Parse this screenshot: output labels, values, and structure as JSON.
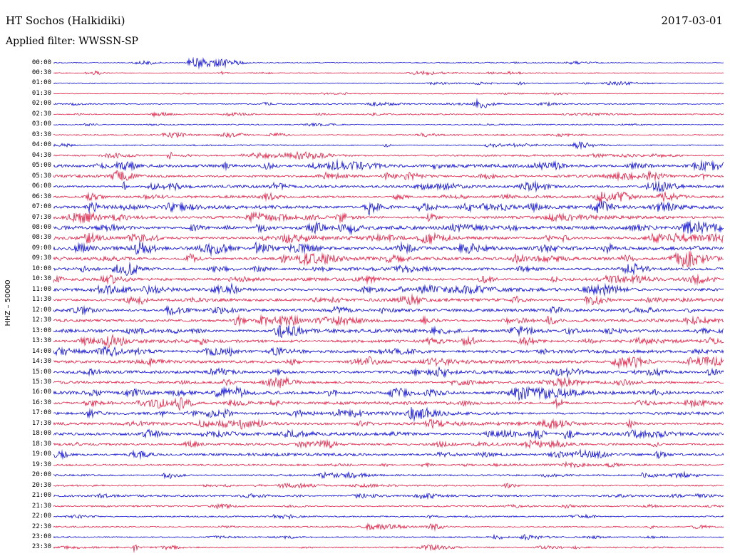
{
  "header": {
    "station": "HT Sochos (Halkidiki)",
    "date": "2017-03-01",
    "filter": "Applied filter: WWSSN-SP"
  },
  "axis": {
    "left_label": "HHZ – 50000"
  },
  "chart_data": {
    "type": "line",
    "title": "HT Sochos (Halkidiki)",
    "subtitle": "Applied filter: WWSSN-SP",
    "date": "2017-03-01",
    "channel": "HHZ",
    "scale": "50000",
    "minutes_per_row": 30,
    "legend": "none",
    "grid": false,
    "colors": {
      "even": "#0000cd",
      "odd": "#dc143c"
    },
    "rows": [
      {
        "label": "00:00",
        "noise": 0.9,
        "events": [
          {
            "pos": 0.205,
            "amp": 8.0,
            "w": 0.006
          },
          {
            "pos": 0.228,
            "amp": 5.0,
            "w": 0.018
          }
        ]
      },
      {
        "label": "00:30",
        "noise": 0.9,
        "events": [
          {
            "pos": 0.545,
            "amp": 2.0,
            "w": 0.02
          },
          {
            "pos": 0.062,
            "amp": 1.5,
            "w": 0.004
          }
        ]
      },
      {
        "label": "01:00",
        "noise": 0.8,
        "events": [
          {
            "pos": 0.835,
            "amp": 2.2,
            "w": 0.018
          }
        ]
      },
      {
        "label": "01:30",
        "noise": 0.8,
        "events": [
          {
            "pos": 0.74,
            "amp": 1.6,
            "w": 0.01
          }
        ]
      },
      {
        "label": "02:00",
        "noise": 1.0,
        "events": [
          {
            "pos": 0.634,
            "amp": 6.0,
            "w": 0.009
          },
          {
            "pos": 0.315,
            "amp": 1.8,
            "w": 0.006
          }
        ]
      },
      {
        "label": "02:30",
        "noise": 0.9,
        "events": [
          {
            "pos": 0.155,
            "amp": 1.8,
            "w": 0.01
          },
          {
            "pos": 0.78,
            "amp": 1.5,
            "w": 0.03
          }
        ]
      },
      {
        "label": "03:00",
        "noise": 0.9,
        "events": []
      },
      {
        "label": "03:30",
        "noise": 1.2,
        "events": [
          {
            "pos": 0.175,
            "amp": 2.2,
            "w": 0.012
          },
          {
            "pos": 0.255,
            "amp": 2.0,
            "w": 0.012
          }
        ]
      },
      {
        "label": "04:00",
        "noise": 1.1,
        "events": [
          {
            "pos": 0.65,
            "amp": 1.8,
            "w": 0.01
          }
        ]
      },
      {
        "label": "04:30",
        "noise": 1.4,
        "events": [
          {
            "pos": 0.172,
            "amp": 9.0,
            "w": 0.0025
          },
          {
            "pos": 0.33,
            "amp": 2.6,
            "w": 0.03
          },
          {
            "pos": 0.37,
            "amp": 2.4,
            "w": 0.02
          },
          {
            "pos": 0.9,
            "amp": 2.2,
            "w": 0.012
          }
        ]
      },
      {
        "label": "05:00",
        "noise": 2.4,
        "events": [
          {
            "pos": 0.39,
            "amp": 3.0,
            "w": 0.015
          },
          {
            "pos": 0.455,
            "amp": 3.5,
            "w": 0.015
          },
          {
            "pos": 0.865,
            "amp": 3.0,
            "w": 0.012
          },
          {
            "pos": 0.97,
            "amp": 5.0,
            "w": 0.03
          }
        ]
      },
      {
        "label": "05:30",
        "noise": 2.0,
        "events": [
          {
            "pos": 0.095,
            "amp": 6.0,
            "w": 0.01
          },
          {
            "pos": 0.405,
            "amp": 4.0,
            "w": 0.012
          },
          {
            "pos": 0.85,
            "amp": 2.5,
            "w": 0.015
          }
        ]
      },
      {
        "label": "06:00",
        "noise": 2.2,
        "events": [
          {
            "pos": 0.103,
            "amp": 7.0,
            "w": 0.002
          },
          {
            "pos": 0.55,
            "amp": 3.0,
            "w": 0.02
          }
        ]
      },
      {
        "label": "06:30",
        "noise": 2.0,
        "events": [
          {
            "pos": 0.815,
            "amp": 7.0,
            "w": 0.008
          },
          {
            "pos": 0.845,
            "amp": 5.5,
            "w": 0.008
          },
          {
            "pos": 0.91,
            "amp": 5.0,
            "w": 0.01
          }
        ]
      },
      {
        "label": "07:00",
        "noise": 2.7,
        "events": [
          {
            "pos": 0.17,
            "amp": 5.0,
            "w": 0.003
          },
          {
            "pos": 0.62,
            "amp": 4.0,
            "w": 0.018
          },
          {
            "pos": 0.1,
            "amp": 3.0,
            "w": 0.01
          }
        ]
      },
      {
        "label": "07:30",
        "noise": 2.4,
        "events": [
          {
            "pos": 0.3,
            "amp": 3.0,
            "w": 0.015
          },
          {
            "pos": 0.75,
            "amp": 3.0,
            "w": 0.02
          }
        ]
      },
      {
        "label": "08:00",
        "noise": 2.9,
        "events": [
          {
            "pos": 0.955,
            "amp": 6.0,
            "w": 0.025
          },
          {
            "pos": 0.6,
            "amp": 3.2,
            "w": 0.02
          }
        ]
      },
      {
        "label": "08:30",
        "noise": 2.7,
        "events": [
          {
            "pos": 0.05,
            "amp": 5.0,
            "w": 0.008
          },
          {
            "pos": 0.35,
            "amp": 5.0,
            "w": 0.015
          },
          {
            "pos": 0.93,
            "amp": 4.0,
            "w": 0.015
          }
        ]
      },
      {
        "label": "09:00",
        "noise": 2.8,
        "events": [
          {
            "pos": 0.36,
            "amp": 5.0,
            "w": 0.015
          },
          {
            "pos": 0.305,
            "amp": 4.0,
            "w": 0.01
          },
          {
            "pos": 0.73,
            "amp": 3.0,
            "w": 0.015
          }
        ]
      },
      {
        "label": "09:30",
        "noise": 2.7,
        "events": [
          {
            "pos": 0.38,
            "amp": 3.0,
            "w": 0.012
          },
          {
            "pos": 0.5,
            "amp": 3.0,
            "w": 0.012
          },
          {
            "pos": 0.95,
            "amp": 4.0,
            "w": 0.02
          }
        ]
      },
      {
        "label": "10:00",
        "noise": 2.4,
        "events": [
          {
            "pos": 0.1,
            "amp": 4.0,
            "w": 0.012
          },
          {
            "pos": 0.52,
            "amp": 3.0,
            "w": 0.015
          }
        ]
      },
      {
        "label": "10:30",
        "noise": 2.4,
        "events": [
          {
            "pos": 0.085,
            "amp": 4.0,
            "w": 0.01
          },
          {
            "pos": 0.27,
            "amp": 3.0,
            "w": 0.012
          },
          {
            "pos": 0.82,
            "amp": 3.0,
            "w": 0.015
          }
        ]
      },
      {
        "label": "11:00",
        "noise": 2.7,
        "events": [
          {
            "pos": 0.065,
            "amp": 4.0,
            "w": 0.01
          },
          {
            "pos": 0.24,
            "amp": 3.5,
            "w": 0.012
          },
          {
            "pos": 0.62,
            "amp": 3.0,
            "w": 0.015
          }
        ]
      },
      {
        "label": "11:30",
        "noise": 2.4,
        "events": [
          {
            "pos": 0.8,
            "amp": 6.5,
            "w": 0.01
          },
          {
            "pos": 0.52,
            "amp": 3.0,
            "w": 0.012
          }
        ]
      },
      {
        "label": "12:00",
        "noise": 2.4,
        "events": [
          {
            "pos": 0.035,
            "amp": 4.0,
            "w": 0.01
          },
          {
            "pos": 0.24,
            "amp": 4.0,
            "w": 0.012
          }
        ]
      },
      {
        "label": "12:30",
        "noise": 2.4,
        "events": [
          {
            "pos": 0.95,
            "amp": 3.5,
            "w": 0.015
          },
          {
            "pos": 0.4,
            "amp": 3.0,
            "w": 0.012
          }
        ]
      },
      {
        "label": "13:00",
        "noise": 2.7,
        "events": [
          {
            "pos": 0.69,
            "amp": 5.0,
            "w": 0.012
          },
          {
            "pos": 0.57,
            "amp": 3.0,
            "w": 0.012
          }
        ]
      },
      {
        "label": "13:30",
        "noise": 2.4,
        "events": [
          {
            "pos": 0.615,
            "amp": 6.0,
            "w": 0.007
          },
          {
            "pos": 0.56,
            "amp": 3.0,
            "w": 0.01
          }
        ]
      },
      {
        "label": "14:00",
        "noise": 2.4,
        "events": [
          {
            "pos": 0.5,
            "amp": 3.0,
            "w": 0.02
          }
        ]
      },
      {
        "label": "14:30",
        "noise": 2.4,
        "events": [
          {
            "pos": 0.845,
            "amp": 5.0,
            "w": 0.018
          },
          {
            "pos": 0.45,
            "amp": 3.0,
            "w": 0.012
          }
        ]
      },
      {
        "label": "15:00",
        "noise": 2.4,
        "events": [
          {
            "pos": 0.245,
            "amp": 4.0,
            "w": 0.01
          },
          {
            "pos": 0.05,
            "amp": 3.0,
            "w": 0.01
          }
        ]
      },
      {
        "label": "15:30",
        "noise": 2.1,
        "events": [
          {
            "pos": 0.6,
            "amp": 2.8,
            "w": 0.015
          }
        ]
      },
      {
        "label": "16:00",
        "noise": 2.7,
        "events": [
          {
            "pos": 0.115,
            "amp": 4.0,
            "w": 0.01
          },
          {
            "pos": 0.245,
            "amp": 5.0,
            "w": 0.012
          },
          {
            "pos": 0.56,
            "amp": 3.2,
            "w": 0.012
          }
        ]
      },
      {
        "label": "16:30",
        "noise": 2.4,
        "events": [
          {
            "pos": 0.155,
            "amp": 4.0,
            "w": 0.006
          },
          {
            "pos": 0.05,
            "amp": 3.0,
            "w": 0.01
          },
          {
            "pos": 0.95,
            "amp": 3.0,
            "w": 0.012
          }
        ]
      },
      {
        "label": "17:00",
        "noise": 2.4,
        "events": [
          {
            "pos": 0.535,
            "amp": 6.0,
            "w": 0.009
          }
        ]
      },
      {
        "label": "17:30",
        "noise": 2.4,
        "events": [
          {
            "pos": 0.74,
            "amp": 5.0,
            "w": 0.012
          },
          {
            "pos": 0.3,
            "amp": 3.0,
            "w": 0.012
          }
        ]
      },
      {
        "label": "18:00",
        "noise": 2.4,
        "events": [
          {
            "pos": 0.765,
            "amp": 7.5,
            "w": 0.005
          },
          {
            "pos": 0.65,
            "amp": 3.0,
            "w": 0.012
          },
          {
            "pos": 0.9,
            "amp": 3.0,
            "w": 0.012
          }
        ]
      },
      {
        "label": "18:30",
        "noise": 2.1,
        "events": [
          {
            "pos": 0.37,
            "amp": 2.8,
            "w": 0.012
          }
        ]
      },
      {
        "label": "19:00",
        "noise": 2.1,
        "events": [
          {
            "pos": 0.64,
            "amp": 3.0,
            "w": 0.012
          },
          {
            "pos": 0.75,
            "amp": 3.0,
            "w": 0.012
          }
        ]
      },
      {
        "label": "19:30",
        "noise": 1.5,
        "events": []
      },
      {
        "label": "20:00",
        "noise": 1.5,
        "events": [
          {
            "pos": 0.44,
            "amp": 2.5,
            "w": 0.012
          },
          {
            "pos": 0.93,
            "amp": 2.5,
            "w": 0.012
          }
        ]
      },
      {
        "label": "20:30",
        "noise": 1.3,
        "events": [
          {
            "pos": 0.25,
            "amp": 1.8,
            "w": 0.01
          }
        ]
      },
      {
        "label": "21:00",
        "noise": 1.5,
        "events": [
          {
            "pos": 0.55,
            "amp": 2.6,
            "w": 0.012
          }
        ]
      },
      {
        "label": "21:30",
        "noise": 1.2,
        "events": [
          {
            "pos": 0.35,
            "amp": 1.6,
            "w": 0.01
          }
        ]
      },
      {
        "label": "22:00",
        "noise": 1.2,
        "events": [
          {
            "pos": 0.33,
            "amp": 2.2,
            "w": 0.004
          }
        ]
      },
      {
        "label": "22:30",
        "noise": 1.2,
        "events": [
          {
            "pos": 0.56,
            "amp": 1.6,
            "w": 0.01
          },
          {
            "pos": 0.96,
            "amp": 2.0,
            "w": 0.01
          }
        ]
      },
      {
        "label": "23:00",
        "noise": 1.2,
        "events": [
          {
            "pos": 0.705,
            "amp": 3.2,
            "w": 0.01
          }
        ]
      },
      {
        "label": "23:30",
        "noise": 1.2,
        "events": [
          {
            "pos": 0.12,
            "amp": 5.0,
            "w": 0.002
          },
          {
            "pos": 0.73,
            "amp": 1.6,
            "w": 0.012
          }
        ]
      }
    ]
  }
}
